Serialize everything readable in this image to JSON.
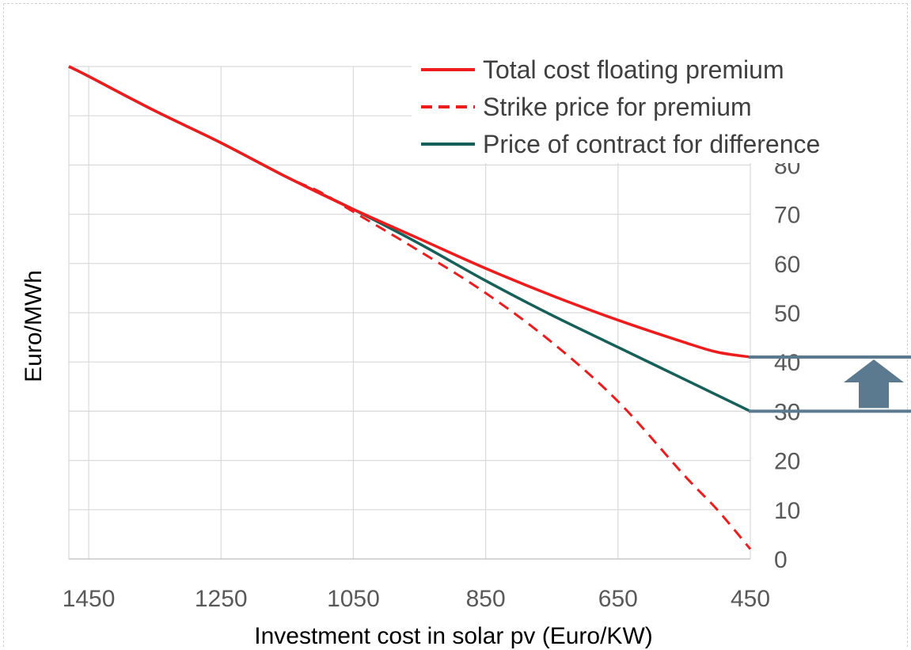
{
  "chart_data": {
    "type": "line",
    "title": "",
    "xlabel": "Investment cost in solar pv (Euro/KW)",
    "ylabel": "Euro/MWh",
    "x_reversed": true,
    "xlim": [
      1480,
      450
    ],
    "ylim": [
      0,
      100
    ],
    "x_ticks": [
      1450,
      1250,
      1050,
      850,
      650,
      450
    ],
    "y_ticks": [
      0,
      10,
      20,
      30,
      40,
      50,
      60,
      70,
      80
    ],
    "grid": true,
    "legend": "top-right",
    "colors": {
      "total": "#ee1c1c",
      "strike": "#ee1c1c",
      "cfd": "#17605a",
      "annotation": "#5b7a90"
    },
    "series": [
      {
        "name": "Total cost floating premium",
        "style": "solid",
        "color": "#ee1c1c",
        "x": [
          1480,
          1450,
          1350,
          1250,
          1150,
          1050,
          950,
          850,
          750,
          650,
          550,
          500,
          450
        ],
        "y": [
          100,
          98,
          91,
          84.5,
          77.5,
          71,
          65,
          59,
          53.5,
          48.5,
          44,
          42,
          41
        ]
      },
      {
        "name": "Strike price for premium",
        "style": "dashed",
        "color": "#ee1c1c",
        "x": [
          1480,
          1450,
          1350,
          1250,
          1150,
          1100,
          1050,
          950,
          850,
          750,
          650,
          550,
          500,
          450
        ],
        "y": [
          100,
          98,
          91,
          84.5,
          77.5,
          74.5,
          70.5,
          62.5,
          54,
          44,
          32,
          17,
          10,
          2
        ]
      },
      {
        "name": "Price of contract for difference",
        "style": "solid",
        "color": "#17605a",
        "x": [
          1480,
          1450,
          1350,
          1250,
          1150,
          1050,
          950,
          850,
          750,
          650,
          550,
          450
        ],
        "y": [
          100,
          98,
          91,
          84.5,
          77.5,
          71,
          64,
          56.5,
          49.5,
          43,
          36.5,
          30
        ]
      }
    ],
    "annotation": {
      "type": "arrow-between-lines",
      "from_value": 30,
      "to_value": 41,
      "direction": "up"
    }
  }
}
